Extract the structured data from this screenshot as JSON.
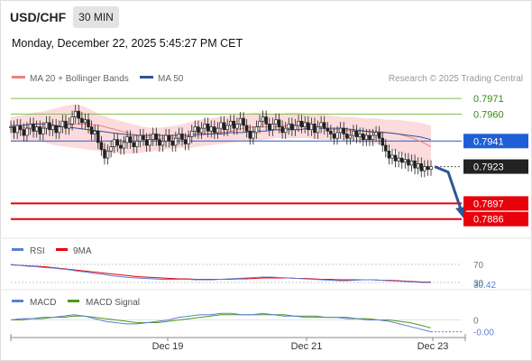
{
  "header": {
    "symbol": "USD/CHF",
    "timeframe": "30 MIN",
    "datetime": "Monday, December 22, 2025 5:45:27 PM CET"
  },
  "legend": {
    "ma20": "MA 20 + Bollinger Bands",
    "ma50": "MA 50",
    "credit": "Research © 2025 Trading Central",
    "rsi": "RSI",
    "rsi_ma": "9MA",
    "macd": "MACD",
    "macd_signal": "MACD Signal"
  },
  "colors": {
    "candle": "#222222",
    "ma20": "#f08080",
    "bollinger_fill": "#fbd5d7",
    "ma50": "#2f5596",
    "resistance": "#7cc04a",
    "support": "#e8000b",
    "pivot": "#1f5fd6",
    "current": "#222222",
    "arrow": "#2f5596",
    "rsi": "#5b7fd6",
    "rsi_ma": "#e8000b",
    "macd": "#5b7fd6",
    "macd_signal": "#4e9a1c"
  },
  "chart_data": [
    {
      "type": "candlestick",
      "title": "USD/CHF",
      "x_ticks": [
        "Dec 19",
        "Dec 21",
        "Dec 23"
      ],
      "ylim": [
        0.7875,
        0.798
      ],
      "levels": [
        {
          "value": 0.7971,
          "label": "0.7971",
          "kind": "resistance"
        },
        {
          "value": 0.796,
          "label": "0.7960",
          "kind": "resistance"
        },
        {
          "value": 0.7941,
          "label": "0.7941",
          "kind": "pivot"
        },
        {
          "value": 0.7923,
          "label": "0.7923",
          "kind": "current"
        },
        {
          "value": 0.7897,
          "label": "0.7897",
          "kind": "support"
        },
        {
          "value": 0.7886,
          "label": "0.7886",
          "kind": "support"
        }
      ],
      "close": [
        0.7951,
        0.7947,
        0.7952,
        0.7949,
        0.7945,
        0.795,
        0.7953,
        0.7948,
        0.7951,
        0.7946,
        0.795,
        0.7954,
        0.7949,
        0.7952,
        0.7947,
        0.7951,
        0.7955,
        0.795,
        0.7953,
        0.7958,
        0.7962,
        0.7957,
        0.7954,
        0.7956,
        0.7951,
        0.7946,
        0.7948,
        0.794,
        0.7935,
        0.7929,
        0.7934,
        0.7937,
        0.7942,
        0.7938,
        0.7936,
        0.794,
        0.7944,
        0.794,
        0.7937,
        0.7941,
        0.7945,
        0.7942,
        0.7938,
        0.7942,
        0.7946,
        0.7942,
        0.7938,
        0.7941,
        0.7945,
        0.7941,
        0.7938,
        0.7943,
        0.7946,
        0.7942,
        0.7939,
        0.7944,
        0.7948,
        0.7951,
        0.7947,
        0.795,
        0.7953,
        0.7948,
        0.7951,
        0.7947,
        0.795,
        0.7954,
        0.7949,
        0.7952,
        0.7955,
        0.795,
        0.7953,
        0.7957,
        0.7952,
        0.7948,
        0.7943,
        0.7947,
        0.7951,
        0.7955,
        0.7958,
        0.7953,
        0.7949,
        0.7953,
        0.7956,
        0.7951,
        0.7947,
        0.795,
        0.7953,
        0.7949,
        0.7952,
        0.7955,
        0.7951,
        0.7954,
        0.7949,
        0.7953,
        0.7947,
        0.7951,
        0.7954,
        0.795,
        0.7948,
        0.7946,
        0.7943,
        0.7947,
        0.795,
        0.7946,
        0.7943,
        0.7945,
        0.7948,
        0.7944,
        0.7946,
        0.7942,
        0.7945,
        0.7942,
        0.7945,
        0.7947,
        0.7943,
        0.7938,
        0.7934,
        0.7929,
        0.7931,
        0.7927,
        0.7929,
        0.7926,
        0.7928,
        0.7924,
        0.7927,
        0.7922,
        0.7925,
        0.792,
        0.7923,
        0.7921,
        0.7923
      ],
      "bollinger_mid": [
        0.7949,
        0.795,
        0.7951,
        0.7951,
        0.7951,
        0.7952,
        0.7953,
        0.7953,
        0.7952,
        0.795,
        0.7948,
        0.7946,
        0.7944,
        0.7943,
        0.7943,
        0.7943,
        0.7944,
        0.7945,
        0.7946,
        0.7947,
        0.7948,
        0.795,
        0.7951,
        0.7951,
        0.7951,
        0.7952,
        0.7952,
        0.7951,
        0.795,
        0.7949,
        0.7949,
        0.7948,
        0.7948,
        0.7948,
        0.7947,
        0.7946,
        0.7944,
        0.7941,
        0.7937
      ],
      "bollinger_upper": [
        0.7958,
        0.7959,
        0.7961,
        0.7962,
        0.7964,
        0.7966,
        0.7967,
        0.7964,
        0.796,
        0.7957,
        0.7955,
        0.7953,
        0.7951,
        0.795,
        0.7951,
        0.7952,
        0.7954,
        0.7956,
        0.7957,
        0.7958,
        0.7959,
        0.796,
        0.7961,
        0.7961,
        0.796,
        0.7961,
        0.7961,
        0.796,
        0.796,
        0.7959,
        0.7958,
        0.7958,
        0.7957,
        0.7957,
        0.7956,
        0.7956,
        0.7955,
        0.7954,
        0.7952
      ],
      "bollinger_lower": [
        0.794,
        0.7941,
        0.7941,
        0.794,
        0.7938,
        0.7937,
        0.7936,
        0.7935,
        0.7934,
        0.7933,
        0.7932,
        0.7932,
        0.7933,
        0.7934,
        0.7935,
        0.7936,
        0.7936,
        0.7937,
        0.7938,
        0.7939,
        0.794,
        0.7941,
        0.7941,
        0.7942,
        0.7943,
        0.7943,
        0.7943,
        0.7943,
        0.7942,
        0.7942,
        0.7942,
        0.7941,
        0.794,
        0.7939,
        0.7937,
        0.7933,
        0.7928,
        0.7924,
        0.792
      ],
      "ma50": [
        0.7952,
        0.7952,
        0.7953,
        0.7953,
        0.7952,
        0.7951,
        0.795,
        0.7949,
        0.7948,
        0.7947,
        0.7946,
        0.7945,
        0.7945,
        0.7945,
        0.7945,
        0.7945,
        0.7945,
        0.7946,
        0.7946,
        0.7946,
        0.7947,
        0.7947,
        0.7948,
        0.7948,
        0.7949,
        0.7949,
        0.7949,
        0.795,
        0.795,
        0.795,
        0.795,
        0.7949,
        0.7948,
        0.7947,
        0.7947,
        0.7946,
        0.7945,
        0.7944,
        0.7942
      ]
    },
    {
      "type": "line",
      "title": "RSI",
      "ylim": [
        20,
        80
      ],
      "levels": [
        {
          "value": 70,
          "label": "70"
        },
        {
          "value": 30,
          "label": "30"
        }
      ],
      "last_value": "30.42",
      "series": [
        {
          "name": "RSI",
          "values": [
            70,
            68,
            66,
            65,
            63,
            62,
            60,
            58,
            55,
            53,
            50,
            48,
            45,
            43,
            41,
            40,
            39,
            38,
            37,
            37,
            37,
            37,
            36,
            36,
            36,
            37,
            38,
            39,
            40,
            41,
            42,
            42,
            41,
            40,
            39,
            38,
            37,
            36,
            35,
            34,
            34,
            35,
            36,
            36,
            35,
            34,
            33,
            32,
            31,
            30,
            30
          ]
        },
        {
          "name": "9MA",
          "values": [
            69,
            68,
            67,
            66,
            65,
            63,
            61,
            59,
            57,
            55,
            53,
            51,
            49,
            47,
            45,
            43,
            42,
            41,
            40,
            39,
            38,
            38,
            37,
            37,
            37,
            37,
            37,
            38,
            38,
            39,
            40,
            40,
            40,
            40,
            39,
            39,
            38,
            37,
            37,
            36,
            36,
            36,
            36,
            36,
            35,
            35,
            34,
            33,
            32,
            31,
            31
          ]
        }
      ]
    },
    {
      "type": "line",
      "title": "MACD",
      "ylim": [
        -0.0012,
        0.001
      ],
      "levels": [
        {
          "value": 0,
          "label": "0"
        }
      ],
      "last_value": "-0.00",
      "series": [
        {
          "name": "MACD",
          "values": [
            0.0,
            0.0001,
            0.0001,
            0.0002,
            0.0002,
            0.0003,
            0.0004,
            0.0003,
            0.0001,
            -0.0001,
            -0.0002,
            -0.0003,
            -0.0003,
            -0.0002,
            -0.0001,
            0.0,
            0.0002,
            0.0003,
            0.0004,
            0.0004,
            0.0005,
            0.0005,
            0.0004,
            0.0004,
            0.0005,
            0.0004,
            0.0003,
            0.0003,
            0.0002,
            0.0002,
            0.0002,
            0.0002,
            0.0001,
            0.0001,
            0.0,
            0.0,
            -0.0001,
            -0.0003,
            -0.0005,
            -0.0007,
            -0.0009
          ]
        },
        {
          "name": "MACD Signal",
          "values": [
            0.0,
            0.0,
            0.0001,
            0.0001,
            0.0002,
            0.0002,
            0.0003,
            0.0003,
            0.0002,
            0.0001,
            0.0,
            -0.0001,
            -0.0002,
            -0.0002,
            -0.0002,
            -0.0001,
            0.0,
            0.0001,
            0.0002,
            0.0003,
            0.0004,
            0.0004,
            0.0004,
            0.0004,
            0.0004,
            0.0004,
            0.0004,
            0.0003,
            0.0003,
            0.0003,
            0.0002,
            0.0002,
            0.0002,
            0.0001,
            0.0001,
            0.0,
            0.0,
            -0.0001,
            -0.0002,
            -0.0004,
            -0.0006
          ]
        }
      ]
    }
  ]
}
